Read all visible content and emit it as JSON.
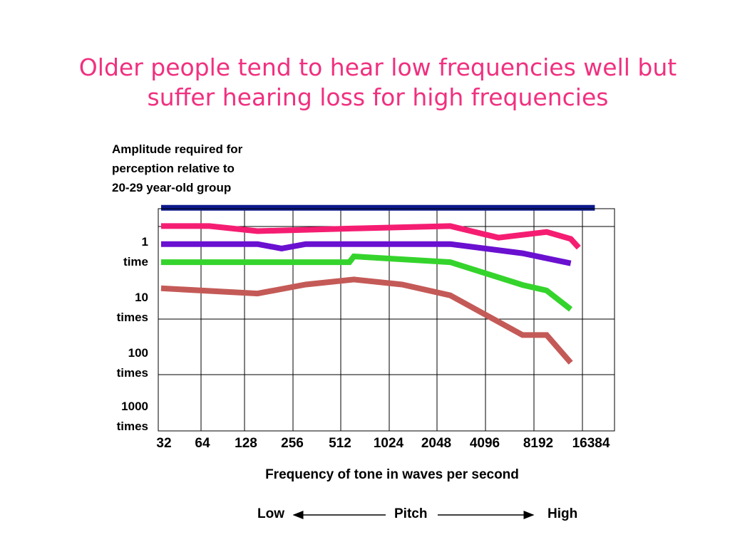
{
  "slide": {
    "title_line1": "Older people tend to hear low frequencies well but",
    "title_line2": "suffer hearing loss for high frequencies"
  },
  "chart_data": {
    "type": "line",
    "ylabel_lines": [
      "Amplitude required for",
      "perception relative to",
      "20-29 year-old group"
    ],
    "xlabel": "Frequency of tone in waves per second",
    "x_scale": "log2",
    "y_scale": "log10",
    "y_ticks": [
      {
        "value": 1,
        "lines": [
          "1",
          "time"
        ]
      },
      {
        "value": 10,
        "lines": [
          "10",
          "times"
        ]
      },
      {
        "value": 100,
        "lines": [
          "100",
          "times"
        ]
      },
      {
        "value": 1000,
        "lines": [
          "1000",
          "times"
        ]
      }
    ],
    "x_tick_labels": [
      "32",
      "64",
      "128",
      "256",
      "512",
      "1024",
      "2048",
      "4096",
      "8192",
      "16384"
    ],
    "grid": true,
    "series": [
      {
        "color": "#0d1a8c",
        "points": [
          [
            32,
            0.22
          ],
          [
            16384,
            0.22
          ]
        ]
      },
      {
        "color": "#f51d72",
        "points": [
          [
            32,
            0.47
          ],
          [
            64,
            0.47
          ],
          [
            128,
            0.58
          ],
          [
            512,
            0.52
          ],
          [
            2048,
            0.47
          ],
          [
            4096,
            0.76
          ],
          [
            8192,
            0.6
          ],
          [
            11585,
            0.8
          ],
          [
            13000,
            1.15
          ]
        ]
      },
      {
        "color": "#6a10d0",
        "points": [
          [
            32,
            0.99
          ],
          [
            128,
            0.99
          ],
          [
            181,
            1.19
          ],
          [
            256,
            0.99
          ],
          [
            2048,
            0.99
          ],
          [
            5793,
            1.45
          ],
          [
            11585,
            2.2
          ]
        ]
      },
      {
        "color": "#35d42c",
        "points": [
          [
            32,
            2.1
          ],
          [
            480,
            2.1
          ],
          [
            512,
            1.65
          ],
          [
            2048,
            2.1
          ],
          [
            5793,
            5.4
          ],
          [
            8192,
            6.8
          ],
          [
            11585,
            14.8
          ]
        ]
      },
      {
        "color": "#c45a57",
        "points": [
          [
            32,
            6.2
          ],
          [
            128,
            7.7
          ],
          [
            256,
            5.3
          ],
          [
            512,
            4.3
          ],
          [
            1024,
            5.3
          ],
          [
            2048,
            8.3
          ],
          [
            5793,
            43
          ],
          [
            8192,
            43
          ],
          [
            11585,
            135
          ]
        ]
      }
    ],
    "pitch_axis": {
      "low": "Low",
      "middle": "Pitch",
      "high": "High"
    }
  }
}
